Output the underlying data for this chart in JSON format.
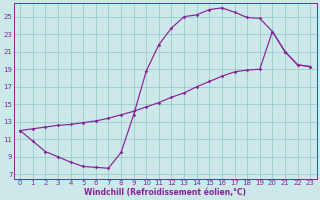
{
  "xlabel": "Windchill (Refroidissement éolien,°C)",
  "bg_color": "#cce8e8",
  "grid_color": "#99cccc",
  "line_color": "#882299",
  "xlim": [
    -0.5,
    23.5
  ],
  "ylim": [
    6.5,
    26.5
  ],
  "yticks": [
    7,
    9,
    11,
    13,
    15,
    17,
    19,
    21,
    23,
    25
  ],
  "xticks": [
    0,
    1,
    2,
    3,
    4,
    5,
    6,
    7,
    8,
    9,
    10,
    11,
    12,
    13,
    14,
    15,
    16,
    17,
    18,
    19,
    20,
    21,
    22,
    23
  ],
  "curve1": [
    [
      0,
      12.0
    ],
    [
      1,
      10.8
    ],
    [
      2,
      9.6
    ],
    [
      3,
      9.0
    ],
    [
      4,
      8.4
    ],
    [
      5,
      7.9
    ],
    [
      6,
      7.8
    ],
    [
      7,
      7.7
    ],
    [
      8,
      9.5
    ],
    [
      9,
      13.8
    ],
    [
      10,
      18.8
    ],
    [
      11,
      21.8
    ],
    [
      12,
      23.7
    ],
    [
      13,
      25.0
    ],
    [
      14,
      25.2
    ],
    [
      15,
      25.8
    ],
    [
      16,
      26.0
    ],
    [
      17,
      25.5
    ],
    [
      18,
      24.9
    ],
    [
      19,
      24.8
    ],
    [
      20,
      23.3
    ],
    [
      21,
      21.0
    ],
    [
      22,
      19.5
    ],
    [
      23,
      19.3
    ]
  ],
  "curve2": [
    [
      0,
      12.0
    ],
    [
      1,
      12.2
    ],
    [
      2,
      12.4
    ],
    [
      3,
      12.6
    ],
    [
      4,
      12.7
    ],
    [
      5,
      12.9
    ],
    [
      6,
      13.1
    ],
    [
      7,
      13.4
    ],
    [
      8,
      13.8
    ],
    [
      9,
      14.2
    ],
    [
      10,
      14.7
    ],
    [
      11,
      15.2
    ],
    [
      12,
      15.8
    ],
    [
      13,
      16.3
    ],
    [
      14,
      17.0
    ],
    [
      15,
      17.6
    ],
    [
      16,
      18.2
    ],
    [
      17,
      18.7
    ],
    [
      18,
      18.9
    ],
    [
      19,
      19.0
    ],
    [
      20,
      23.3
    ],
    [
      21,
      21.0
    ],
    [
      22,
      19.5
    ],
    [
      23,
      19.3
    ]
  ],
  "marker_style": "D",
  "markersize": 1.8,
  "linewidth": 0.85,
  "tick_fontsize": 5.0,
  "xlabel_fontsize": 5.5
}
